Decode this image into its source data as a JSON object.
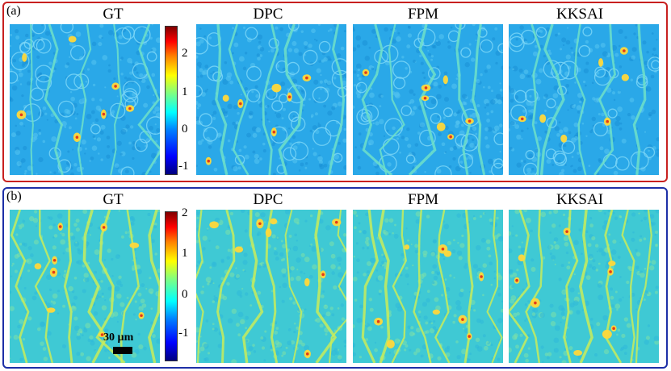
{
  "panels": [
    {
      "label": "(a)",
      "titles": [
        "GT",
        "DPC",
        "FPM",
        "KKSAI"
      ],
      "colorbar_ticks": [
        "2",
        "1",
        "0",
        "-1"
      ],
      "frame_color": "#c8201f"
    },
    {
      "label": "(b)",
      "titles": [
        "GT",
        "DPC",
        "FPM",
        "KKSAI"
      ],
      "colorbar_ticks": [
        "2",
        "1",
        "0",
        "-1"
      ],
      "frame_color": "#1d2fa7"
    }
  ],
  "scale_bar": {
    "label": "30 µm"
  },
  "colors": {
    "background_a": "#2aa8e8",
    "background_b": "#3fc9d4"
  }
}
